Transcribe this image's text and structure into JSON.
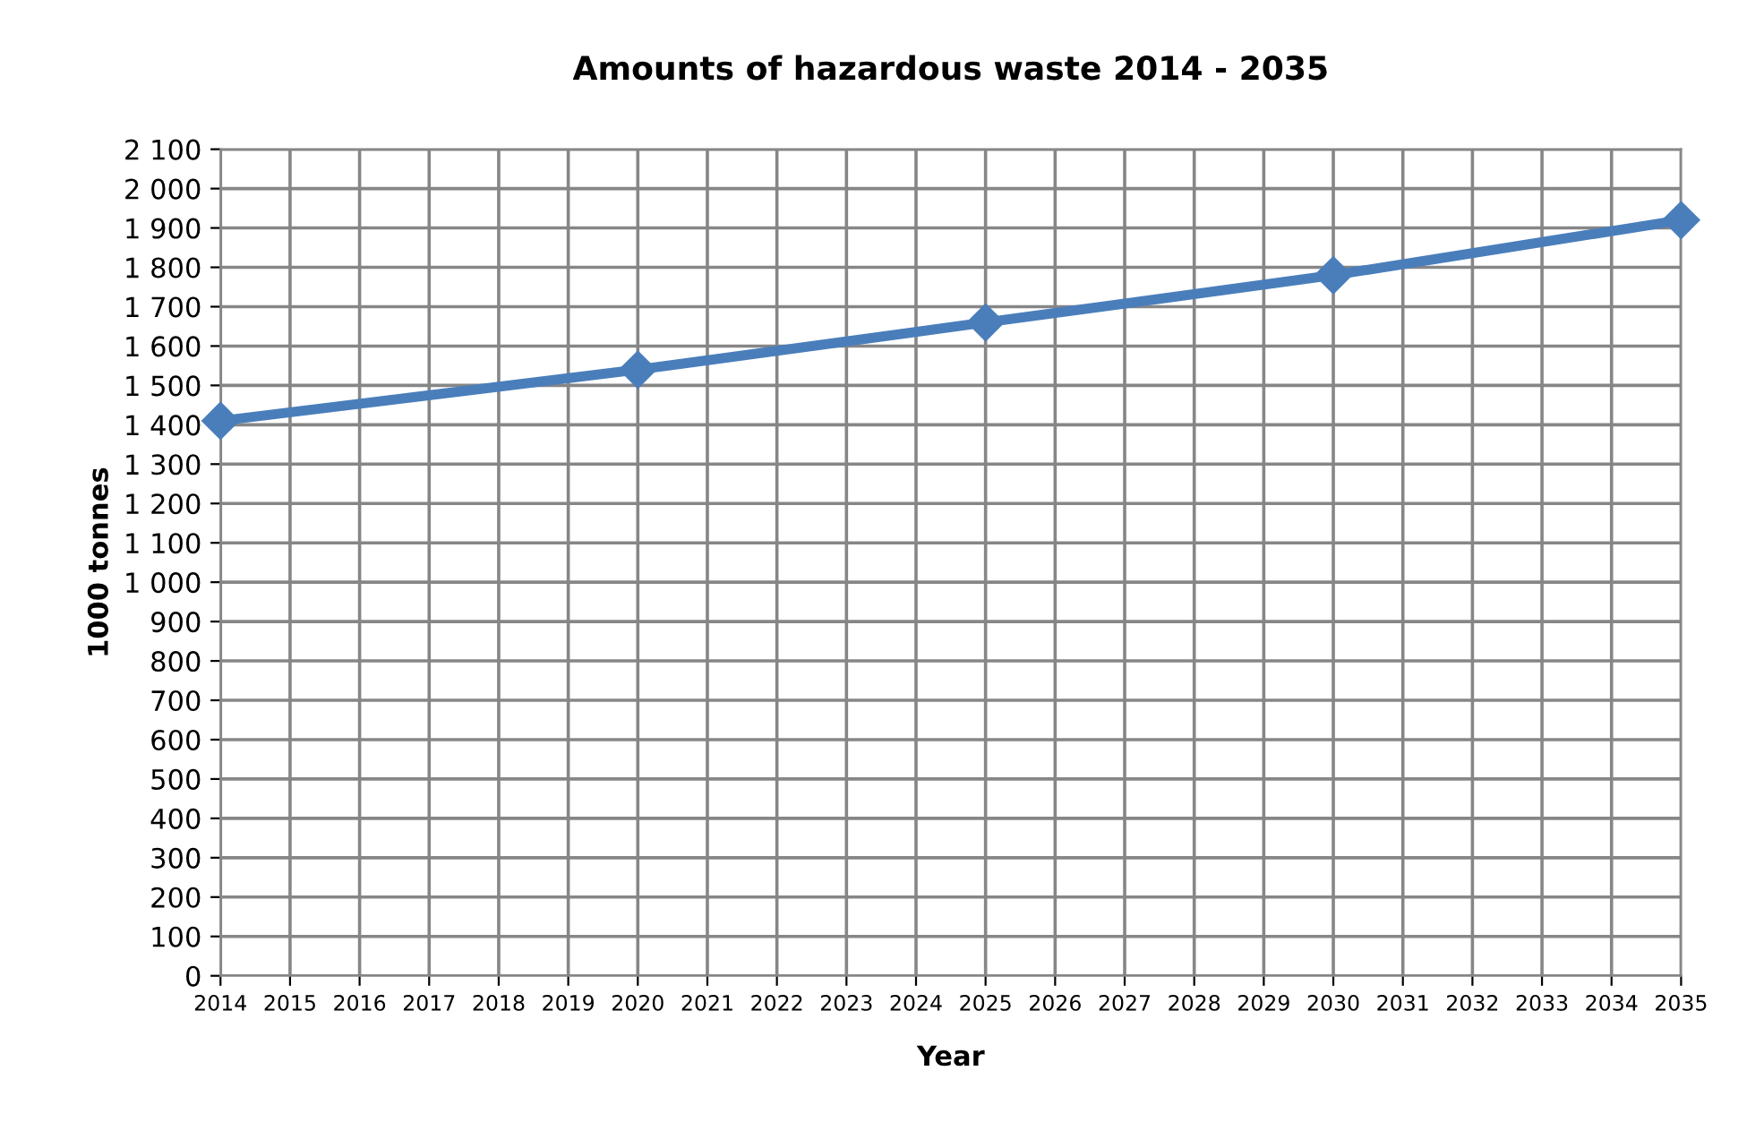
{
  "chart_data": {
    "type": "line",
    "title": "Amounts of hazardous waste 2014 - 2035",
    "xlabel": "Year",
    "ylabel": "1000 tonnes",
    "series": [
      {
        "x": [
          2014,
          2020,
          2025,
          2030,
          2035
        ],
        "values": [
          1410,
          1540,
          1660,
          1780,
          1920
        ],
        "color": "#4a7ebb"
      }
    ],
    "xlim": [
      2014,
      2035
    ],
    "xticks": [
      2014,
      2015,
      2016,
      2017,
      2018,
      2019,
      2020,
      2021,
      2022,
      2023,
      2024,
      2025,
      2026,
      2027,
      2028,
      2029,
      2030,
      2031,
      2032,
      2033,
      2034,
      2035
    ],
    "ylim": [
      0,
      2100
    ],
    "yticks": [
      0,
      100,
      200,
      300,
      400,
      500,
      600,
      700,
      800,
      900,
      {
        "value": 1000,
        "label": "1 000"
      },
      {
        "value": 1100,
        "label": "1 100"
      },
      {
        "value": 1200,
        "label": "1 200"
      },
      {
        "value": 1300,
        "label": "1 300"
      },
      {
        "value": 1400,
        "label": "1 400"
      },
      {
        "value": 1500,
        "label": "1 500"
      },
      {
        "value": 1600,
        "label": "1 600"
      },
      {
        "value": 1700,
        "label": "1 700"
      },
      {
        "value": 1800,
        "label": "1 800"
      },
      {
        "value": 1900,
        "label": "1 900"
      },
      {
        "value": 2000,
        "label": "2 000"
      },
      {
        "value": 2100,
        "label": "2 100"
      }
    ],
    "grid": true,
    "marker": "diamond",
    "line_style": "solid"
  }
}
